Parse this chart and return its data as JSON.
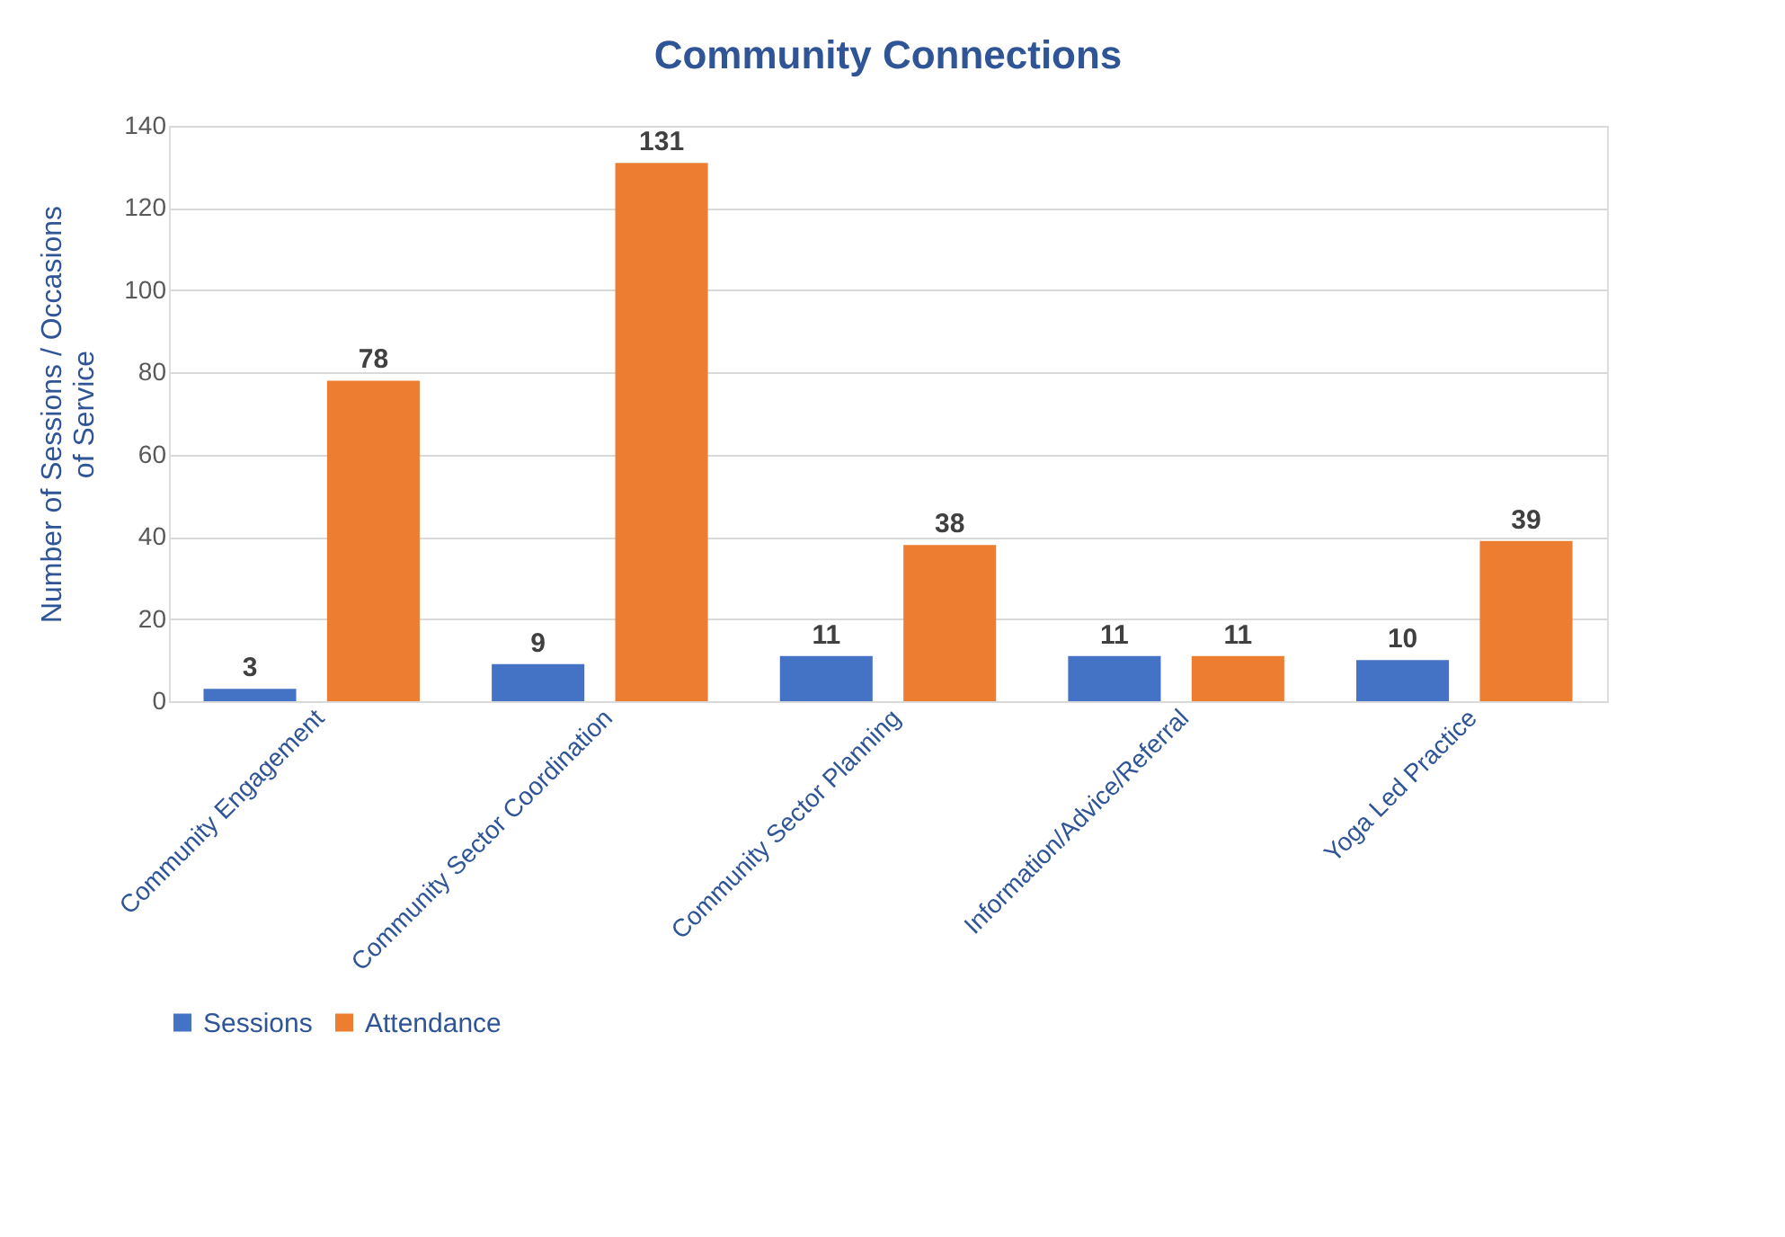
{
  "chart_data": {
    "type": "bar",
    "title": "Community Connections",
    "ylabel": "Number of Sessions / Occasions of Service",
    "categories": [
      "Community Engagement",
      "Community Sector Coordination",
      "Community Sector Planning",
      "Information/Advice/Referral",
      "Yoga Led Practice"
    ],
    "series": [
      {
        "name": "Sessions",
        "color": "#4472c4",
        "values": [
          3,
          9,
          11,
          11,
          10
        ]
      },
      {
        "name": "Attendance",
        "color": "#ed7d31",
        "values": [
          78,
          131,
          38,
          11,
          39
        ]
      }
    ],
    "ylim": [
      0,
      140
    ],
    "yticks": [
      0,
      20,
      40,
      60,
      80,
      100,
      120,
      140
    ],
    "grid": "y",
    "legend": "bottom",
    "data_labels": true
  }
}
